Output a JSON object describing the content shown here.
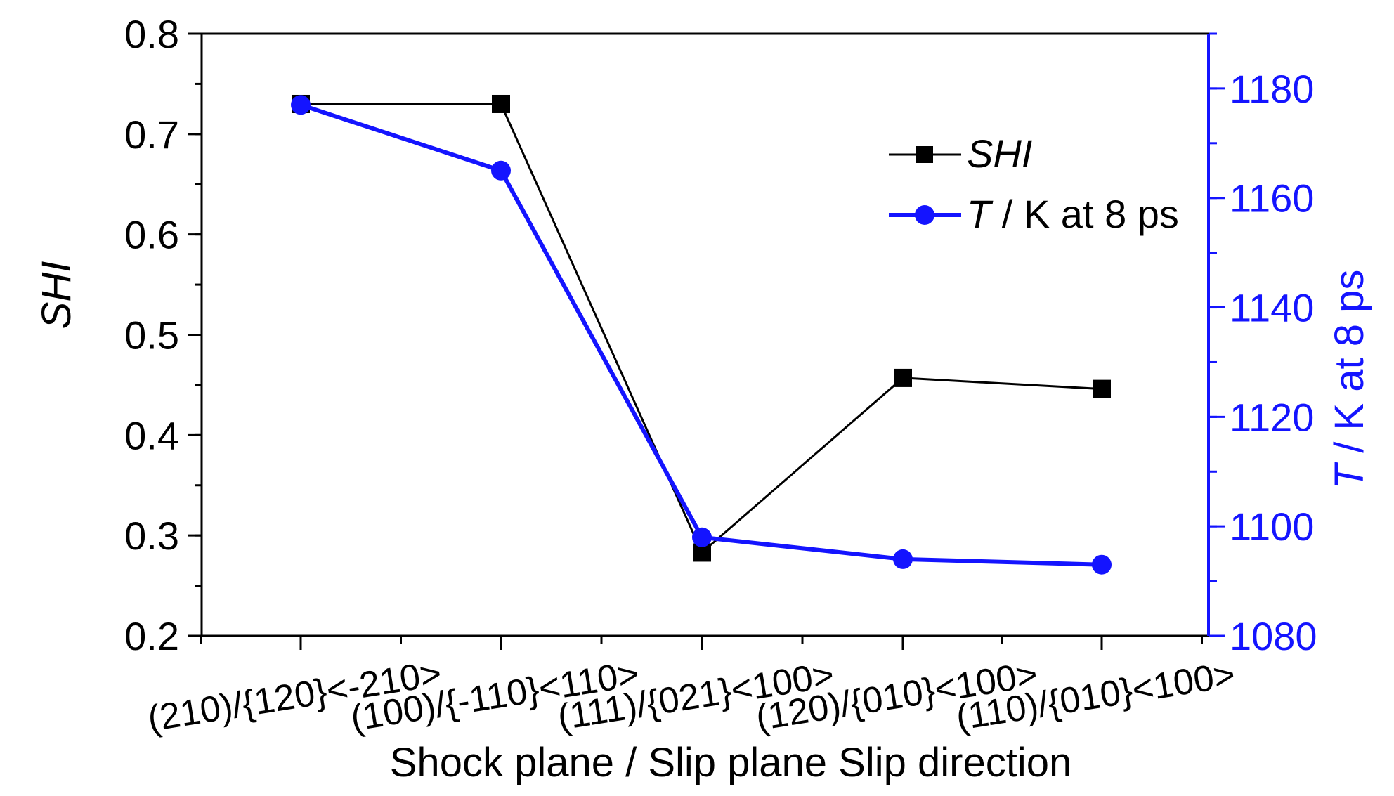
{
  "chart_data": {
    "type": "line",
    "xlabel": "Shock plane / Slip plane Slip direction",
    "categories": [
      "(210)/{120}<-210>",
      "(100)/{-110}<110>",
      "(111)/{021}<100>",
      "(120)/{010}<100>",
      "(110)/{010}<100>"
    ],
    "y_left": {
      "label_italic": "SHI",
      "range": [
        0.2,
        0.8
      ],
      "ticks": [
        "0.2",
        "0.3",
        "0.4",
        "0.5",
        "0.6",
        "0.7",
        "0.8"
      ],
      "tick_values": [
        0.2,
        0.3,
        0.4,
        0.5,
        0.6,
        0.7,
        0.8
      ],
      "minor_step": 0.05,
      "color": "#000000"
    },
    "y_right": {
      "label_italic": "T",
      "label_rest": " / K at 8 ps",
      "range": [
        1080,
        1190
      ],
      "ticks": [
        "1080",
        "1100",
        "1120",
        "1140",
        "1160",
        "1180"
      ],
      "tick_values": [
        1080,
        1100,
        1120,
        1140,
        1160,
        1180
      ],
      "minor_step": 10,
      "color": "#1414ff"
    },
    "series": [
      {
        "name_italic": "SHI",
        "name_rest": "",
        "axis": "left",
        "marker": "square",
        "color": "#000000",
        "values": [
          0.73,
          0.73,
          0.283,
          0.457,
          0.446
        ]
      },
      {
        "name_italic": "T",
        "name_rest": " / K at 8 ps",
        "axis": "right",
        "marker": "circle",
        "color": "#1414ff",
        "values": [
          1177,
          1165,
          1098,
          1094,
          1093
        ]
      }
    ],
    "legend": {
      "position": "top-right"
    },
    "grid": false
  }
}
